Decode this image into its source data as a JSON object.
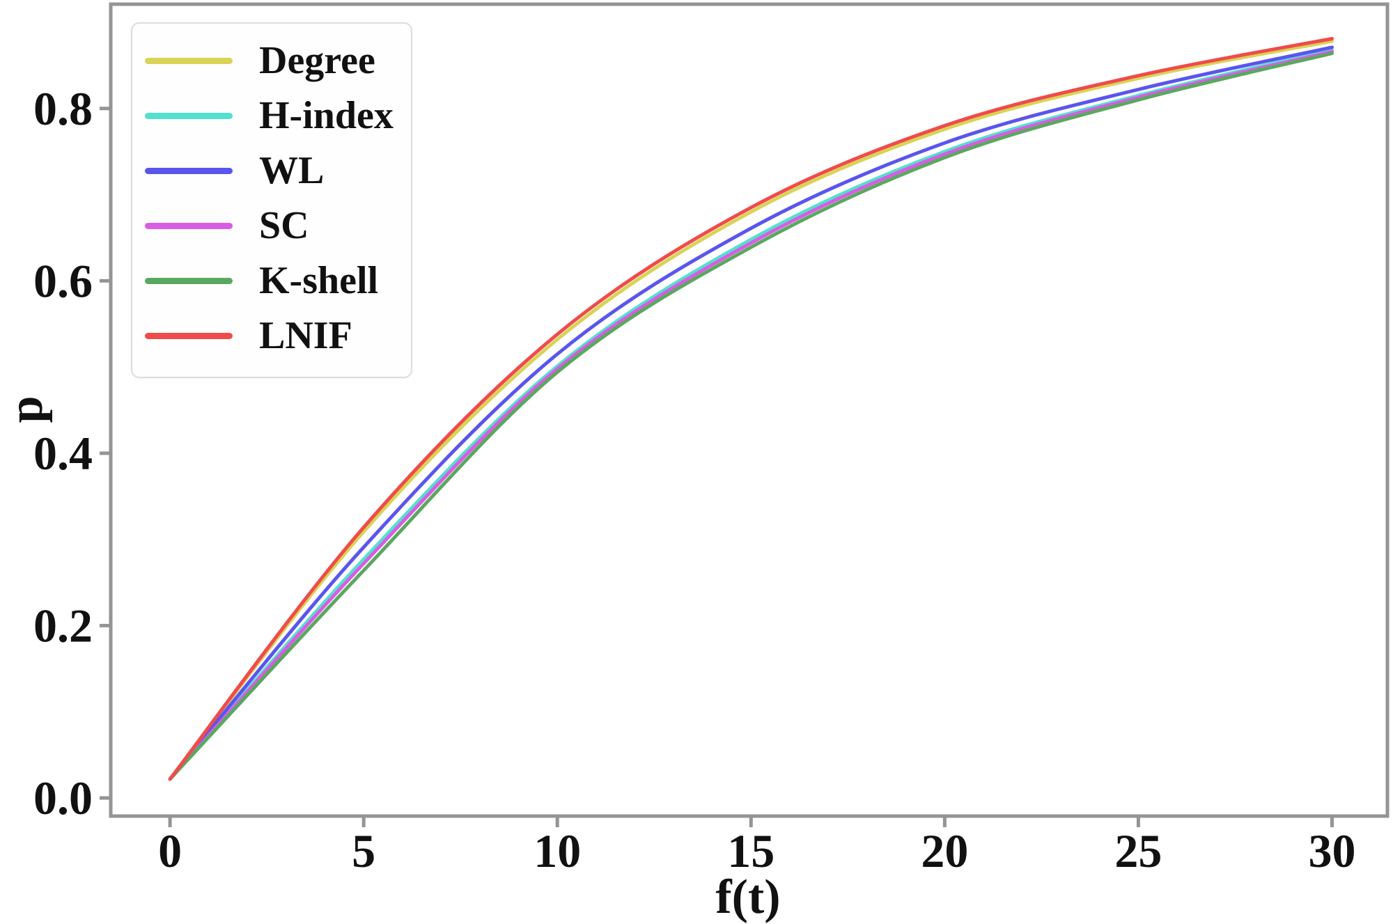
{
  "chart_data": {
    "type": "line",
    "title": "",
    "xlabel": "f(t)",
    "ylabel": "p",
    "x": [
      0,
      5,
      10,
      15,
      20,
      25,
      30
    ],
    "x_tick_labels": [
      "0",
      "5",
      "10",
      "15",
      "20",
      "25",
      "30"
    ],
    "y_ticks": [
      0.0,
      0.2,
      0.4,
      0.6,
      0.8
    ],
    "y_tick_labels": [
      "0.0",
      "0.2",
      "0.4",
      "0.6",
      "0.8"
    ],
    "xlim": [
      -1.53,
      31.43
    ],
    "ylim": [
      -0.021,
      0.921
    ],
    "grid": false,
    "legend_position": "upper-left",
    "axis_color": "#949494",
    "text_color": "#111111",
    "line_width": 5,
    "series": [
      {
        "name": "Degree",
        "color": "#d9d356",
        "values": [
          0.022,
          0.309,
          0.532,
          0.68,
          0.776,
          0.835,
          0.878
        ]
      },
      {
        "name": "H-index",
        "color": "#52e0cf",
        "values": [
          0.022,
          0.277,
          0.501,
          0.648,
          0.75,
          0.815,
          0.868
        ]
      },
      {
        "name": "WL",
        "color": "#5a55ee",
        "values": [
          0.022,
          0.291,
          0.515,
          0.661,
          0.76,
          0.822,
          0.871
        ]
      },
      {
        "name": "SC",
        "color": "#d95ce4",
        "values": [
          0.022,
          0.272,
          0.498,
          0.644,
          0.747,
          0.813,
          0.866
        ]
      },
      {
        "name": "K-shell",
        "color": "#5aa85f",
        "values": [
          0.022,
          0.264,
          0.494,
          0.639,
          0.743,
          0.81,
          0.864
        ]
      },
      {
        "name": "LNIF",
        "color": "#f04b4b",
        "values": [
          0.022,
          0.314,
          0.538,
          0.685,
          0.78,
          0.838,
          0.881
        ]
      }
    ]
  }
}
